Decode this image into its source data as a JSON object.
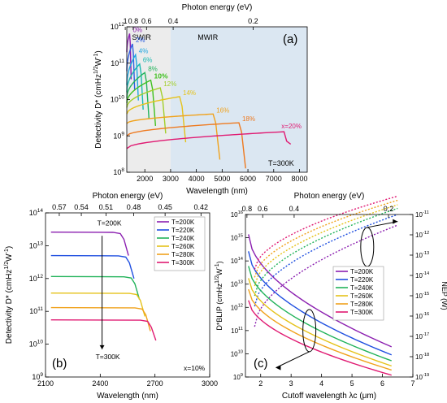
{
  "figure": {
    "panels": [
      "(a)",
      "(b)",
      "(c)"
    ]
  },
  "chart_data": [
    {
      "panel": "(a)",
      "type": "line",
      "xlabel": "Wavelength (nm)",
      "ylabel": "Detectivity D* (cmHz^1/2W^-1)",
      "top_axis_label": "Photon energy (eV)",
      "top_ticks": [
        "1",
        "0.8",
        "0.6",
        "0.4",
        "0.2"
      ],
      "top_tick_energies": [
        1.0,
        0.8,
        0.6,
        0.4,
        0.2
      ],
      "xlim": [
        1300,
        8300
      ],
      "xticks": [
        2000,
        3000,
        4000,
        5000,
        6000,
        7000,
        8000
      ],
      "ylim_log10": [
        8,
        12
      ],
      "yticks": [
        "10^8",
        "10^9",
        "10^10",
        "10^11",
        "10^12"
      ],
      "bands": [
        {
          "label": "SWIR",
          "from": 1300,
          "to": 3000,
          "color": "#ececec"
        },
        {
          "label": "MWIR",
          "from": 3000,
          "to": 8300,
          "color": "#dbe7f2"
        }
      ],
      "annotation": "T=300K",
      "series": [
        {
          "name": "0%",
          "color": "#8b1fb0",
          "cutoff": 1410,
          "start": 200000000000.0,
          "peak": 650000000000.0
        },
        {
          "name": "2%",
          "color": "#2e5fe0",
          "cutoff": 1520,
          "start": 60000000000.0,
          "peak": 340000000000.0
        },
        {
          "name": "4%",
          "color": "#1fa6e0",
          "cutoff": 1640,
          "start": 25000000000.0,
          "peak": 170000000000.0
        },
        {
          "name": "6%",
          "color": "#18b8b0",
          "cutoff": 1800,
          "start": 16000000000.0,
          "peak": 95000000000.0
        },
        {
          "name": "8%",
          "color": "#22b35a",
          "cutoff": 2000,
          "start": 11000000000.0,
          "peak": 55000000000.0
        },
        {
          "name": "10%",
          "color": "#3fc01e",
          "cutoff": 2230,
          "start": 8000000000.0,
          "peak": 34000000000.0
        },
        {
          "name": "12%",
          "color": "#a3cf2a",
          "cutoff": 2600,
          "start": 6000000000.0,
          "peak": 21000000000.0
        },
        {
          "name": "14%",
          "color": "#e5c21a",
          "cutoff": 3350,
          "start": 4000000000.0,
          "peak": 12000000000.0
        },
        {
          "name": "16%",
          "color": "#f0a21c",
          "cutoff": 4650,
          "start": 2200000000.0,
          "peak": 4000000000.0
        },
        {
          "name": "18%",
          "color": "#ee7a20",
          "cutoff": 5650,
          "start": 1000000000.0,
          "peak": 2300000000.0
        },
        {
          "name": "x=20%",
          "color": "#e01a72",
          "cutoff": 7400,
          "start": 450000000.0,
          "peak": 1300000000.0
        }
      ]
    },
    {
      "panel": "(b)",
      "type": "line",
      "xlabel": "Wavelength (nm)",
      "ylabel": "Detectivity D* (cmHz^1/2W^-1)",
      "top_axis_label": "Photon energy (eV)",
      "top_ticks": [
        "0.57",
        "0.54",
        "0.51",
        "0.48",
        "0.45",
        "0.42"
      ],
      "top_tick_energies": [
        0.57,
        0.54,
        0.51,
        0.48,
        0.45,
        0.42
      ],
      "xlim": [
        2100,
        3000
      ],
      "xticks": [
        2100,
        2400,
        2700,
        3000
      ],
      "ylim_log10": [
        9,
        14
      ],
      "yticks": [
        "10^9",
        "10^10",
        "10^11",
        "10^12",
        "10^13",
        "10^14"
      ],
      "annotation_top": "T=200K",
      "annotation_bottom": "T=300K",
      "corner_note": "x=10%",
      "series": [
        {
          "name": "T=200K",
          "color": "#8b1fb0",
          "plateau": 26000000000000.0,
          "cutoff": 2530,
          "end": 5000000000000.0
        },
        {
          "name": "T=220K",
          "color": "#1f4fe0",
          "plateau": 5000000000000.0,
          "cutoff": 2560,
          "end": 1000000000000.0
        },
        {
          "name": "T=240K",
          "color": "#22b35a",
          "plateau": 1150000000000.0,
          "cutoff": 2590,
          "end": 230000000000.0
        },
        {
          "name": "T=260K",
          "color": "#e5c21a",
          "plateau": 360000000000.0,
          "cutoff": 2620,
          "end": 70000000000.0
        },
        {
          "name": "T=280K",
          "color": "#f0a21c",
          "plateau": 130000000000.0,
          "cutoff": 2650,
          "end": 25000000000.0
        },
        {
          "name": "T=300K",
          "color": "#e01a72",
          "plateau": 55000000000.0,
          "cutoff": 2680,
          "end": 13000000000.0
        }
      ]
    },
    {
      "panel": "(c)",
      "type": "line",
      "xlabel": "Cutoff wavelength λc (μm)",
      "ylabel_left": "D*BLIP (cmHz^1/2W^-1)",
      "ylabel_right": "NEP (W)",
      "top_axis_label": "Photon energy (eV)",
      "top_ticks": [
        "0.8",
        "0.6",
        "0.4",
        "0.2"
      ],
      "top_tick_energies": [
        0.8,
        0.6,
        0.4,
        0.2
      ],
      "xlim": [
        1.5,
        7
      ],
      "xticks": [
        2,
        3,
        4,
        5,
        6,
        7
      ],
      "ylim_left_log10": [
        9,
        16
      ],
      "yticks_left": [
        "10^9",
        "10^10",
        "10^11",
        "10^12",
        "10^13",
        "10^14",
        "10^15",
        "10^16"
      ],
      "ylim_right_log10": [
        -19,
        -11
      ],
      "yticks_right": [
        "10^-11",
        "10^-12",
        "10^-13",
        "10^-14",
        "10^-15",
        "10^-16",
        "10^-17",
        "10^-18",
        "10^-19"
      ],
      "series": [
        {
          "name": "T=200K",
          "color": "#8b1fb0",
          "D_start": 1400000000000000.0,
          "D_end": 20000000000.0,
          "NEP_start": 3e-17,
          "NEP_end": 3e-12
        },
        {
          "name": "T=220K",
          "color": "#1f4fe0",
          "D_start": 260000000000000.0,
          "D_end": 9000000000.0,
          "NEP_start": 3e-16,
          "NEP_end": 1e-11
        },
        {
          "name": "T=240K",
          "color": "#22b35a",
          "D_start": 60000000000000.0,
          "D_end": 5000000000.0,
          "NEP_start": 1e-15,
          "NEP_end": 2e-11
        },
        {
          "name": "T=260K",
          "color": "#e5c21a",
          "D_start": 18000000000000.0,
          "D_end": 3000000000.0,
          "NEP_start": 3e-15,
          "NEP_end": 3e-11
        },
        {
          "name": "T=280K",
          "color": "#f0a21c",
          "D_start": 6000000000000.0,
          "D_end": 2000000000.0,
          "NEP_start": 8e-15,
          "NEP_end": 5e-11
        },
        {
          "name": "T=300K",
          "color": "#e01a72",
          "D_start": 2000000000000.0,
          "D_end": 1200000000.0,
          "NEP_start": 2e-14,
          "NEP_end": 8e-11
        }
      ]
    }
  ]
}
